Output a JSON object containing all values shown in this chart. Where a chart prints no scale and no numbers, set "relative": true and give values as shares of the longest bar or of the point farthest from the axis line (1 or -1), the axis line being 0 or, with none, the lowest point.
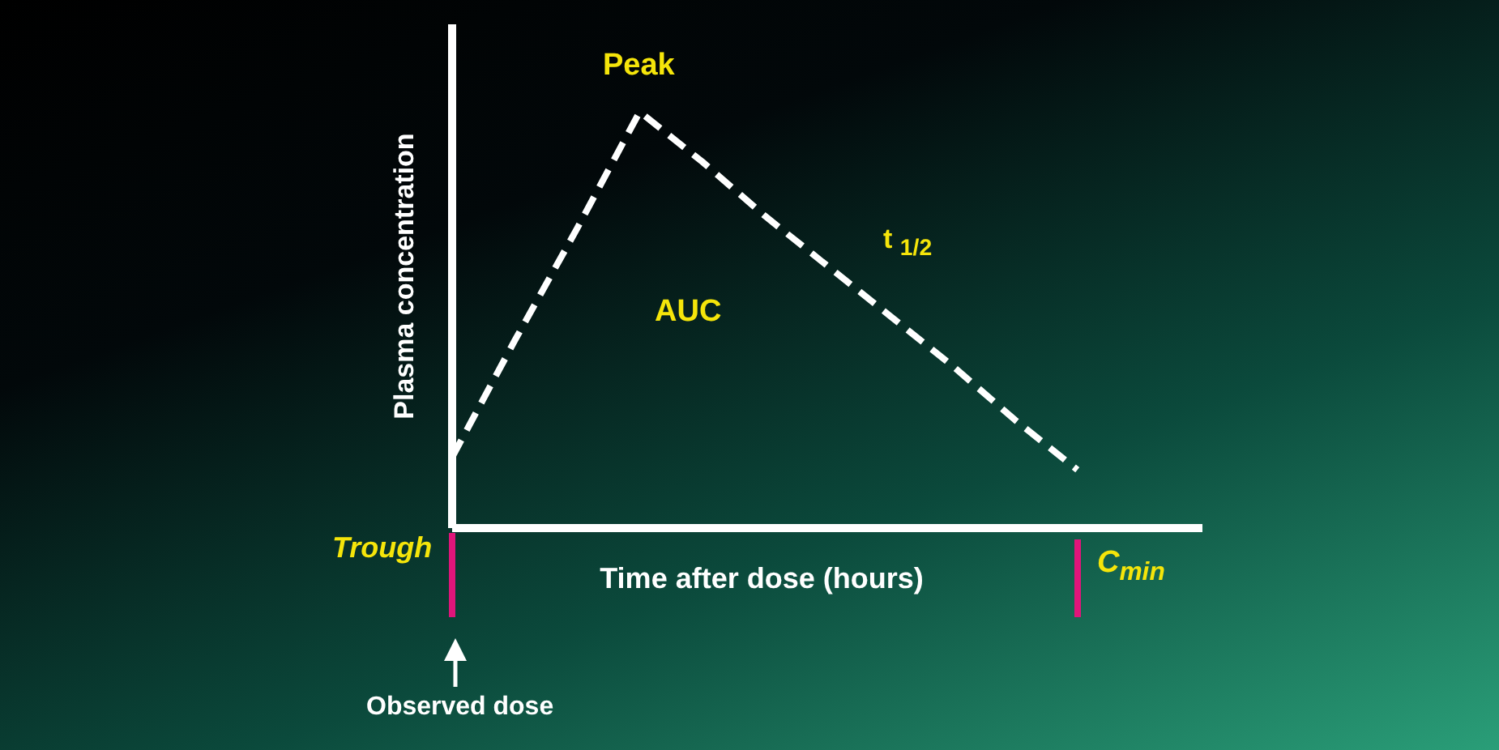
{
  "chart_data": {
    "type": "line",
    "relative": true,
    "xlabel": "Time after dose (hours)",
    "ylabel": "Plasma concentration",
    "line_style": "dashed",
    "categories": [
      null,
      null,
      null,
      null,
      null,
      null,
      null,
      null,
      null,
      null,
      null,
      null,
      null
    ],
    "series": [
      {
        "color": "#ffffff",
        "values": [
          0.17,
          0.45,
          0.72,
          1,
          0.88,
          0.75,
          0.63,
          0.51,
          0.39,
          0.26,
          0.14,
          null,
          null
        ]
      }
    ],
    "annotations": [
      "Peak",
      "t $_{1/2}$",
      "AUC",
      "Trough",
      "C$_{min}$",
      "Observed dose"
    ]
  }
}
